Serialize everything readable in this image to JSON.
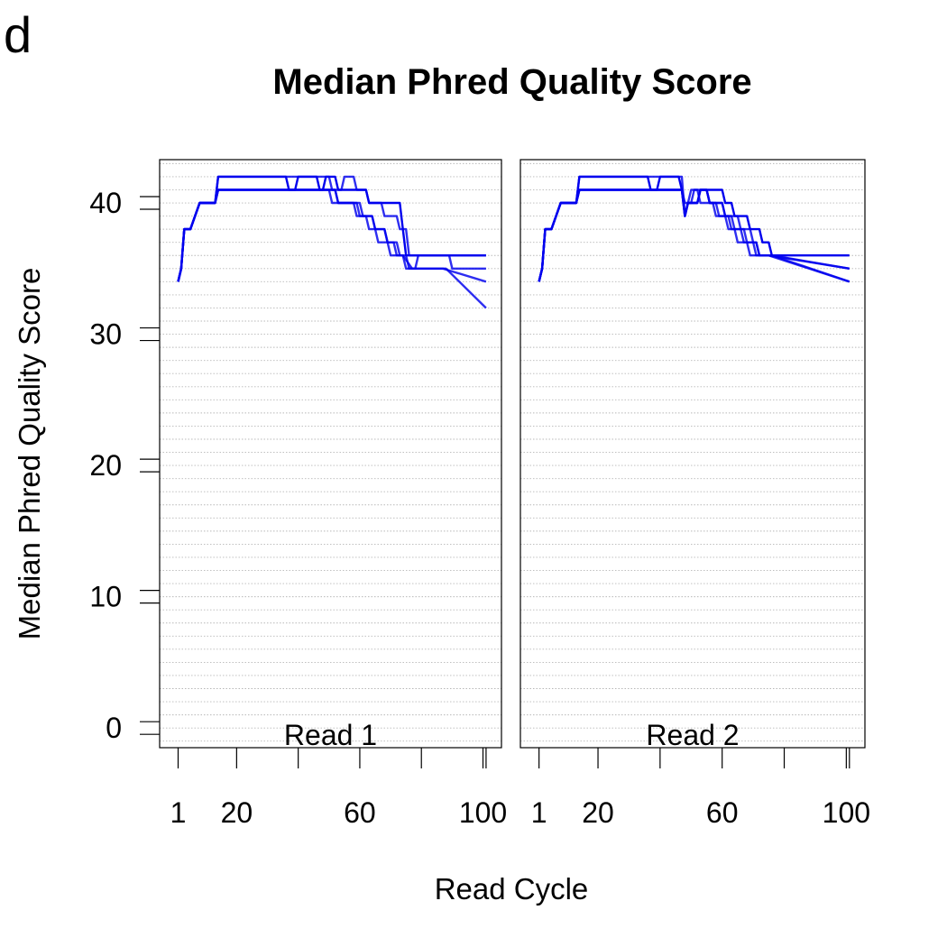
{
  "panel_letter": "d",
  "chart_data": {
    "type": "line",
    "title": "Median Phred Quality Score",
    "xlabel": "Read Cycle",
    "ylabel": "Median Phred Quality Score",
    "ylim": [
      -1.5,
      43.3
    ],
    "y_ticks": [
      0,
      10,
      20,
      30,
      40
    ],
    "grid": "horizontal dotted lines at every integer score",
    "series_color": "#0000ee",
    "panels": [
      {
        "label": "Read 1",
        "xlim": [
          -5,
          106
        ],
        "x_ticks": [
          1,
          20,
          40,
          60,
          80,
          100,
          101
        ],
        "x_tick_labels": [
          "1",
          "20",
          "",
          "60",
          "",
          "100",
          ""
        ],
        "series": [
          {
            "x": [
              1,
              2,
              3,
              5,
              8,
              10,
              13,
              14,
              15,
              36,
              37,
              39,
              40,
              41,
              46,
              47,
              48,
              49,
              52,
              53,
              62,
              63,
              73,
              74,
              75,
              76,
              81,
              82,
              101
            ],
            "y": [
              34,
              35,
              38,
              38,
              40,
              40,
              40,
              42,
              42,
              42,
              41,
              41,
              42,
              42,
              42,
              41,
              41,
              42,
              42,
              41,
              41,
              40,
              40,
              38,
              36,
              36,
              36,
              36,
              36
            ]
          },
          {
            "x": [
              1,
              2,
              3,
              5,
              8,
              10,
              13,
              14,
              15,
              50,
              51,
              54,
              55,
              60,
              61,
              64,
              65,
              68,
              69,
              72,
              73,
              74,
              77,
              78,
              87,
              88,
              101
            ],
            "y": [
              34,
              35,
              38,
              38,
              40,
              40,
              40,
              41,
              41,
              41,
              40,
              40,
              40,
              40,
              39,
              39,
              38,
              38,
              37,
              37,
              36,
              36,
              35,
              35,
              35,
              35,
              32
            ]
          },
          {
            "x": [
              1,
              2,
              3,
              5,
              8,
              10,
              13,
              14,
              15,
              52,
              53,
              58,
              59,
              62,
              63,
              65,
              66,
              69,
              70,
              74,
              75,
              78,
              79,
              89,
              90,
              101
            ],
            "y": [
              34,
              35,
              38,
              38,
              40,
              40,
              40,
              41,
              41,
              41,
              40,
              40,
              39,
              39,
              38,
              38,
              37,
              37,
              36,
              36,
              35,
              35,
              36,
              36,
              35,
              35
            ]
          },
          {
            "x": [
              1,
              2,
              3,
              5,
              8,
              10,
              13,
              14,
              15,
              50,
              51,
              54,
              55,
              58,
              59,
              62,
              63,
              67,
              68,
              72,
              73,
              75,
              76,
              86,
              87,
              101
            ],
            "y": [
              34,
              35,
              38,
              38,
              40,
              40,
              40,
              42,
              42,
              42,
              41,
              41,
              42,
              42,
              41,
              41,
              40,
              40,
              39,
              39,
              38,
              38,
              36,
              36,
              36,
              36
            ]
          },
          {
            "x": [
              1,
              2,
              3,
              5,
              8,
              10,
              13,
              14,
              15,
              52,
              53,
              59,
              60,
              64,
              65,
              68,
              69,
              71,
              72,
              75,
              76,
              86,
              87,
              101
            ],
            "y": [
              34,
              35,
              38,
              38,
              40,
              40,
              40,
              41,
              41,
              41,
              40,
              40,
              39,
              39,
              38,
              38,
              37,
              37,
              36,
              36,
              35,
              35,
              35,
              34
            ]
          }
        ]
      },
      {
        "label": "Read 2",
        "xlim": [
          -5,
          106
        ],
        "x_ticks": [
          1,
          20,
          40,
          60,
          80,
          100,
          101
        ],
        "x_tick_labels": [
          "1",
          "20",
          "",
          "60",
          "",
          "100",
          ""
        ],
        "series": [
          {
            "x": [
              1,
              2,
              3,
              5,
              8,
              10,
              13,
              14,
              15,
              36,
              37,
              39,
              40,
              41,
              46,
              47,
              48,
              49,
              52,
              53,
              60,
              61,
              63,
              64,
              68,
              69,
              72,
              73,
              75,
              76,
              101
            ],
            "y": [
              34,
              35,
              38,
              38,
              40,
              40,
              40,
              42,
              42,
              42,
              41,
              41,
              42,
              42,
              42,
              41,
              39,
              40,
              40,
              41,
              41,
              40,
              40,
              39,
              39,
              38,
              38,
              37,
              37,
              36,
              36
            ]
          },
          {
            "x": [
              1,
              2,
              3,
              5,
              8,
              10,
              13,
              14,
              15,
              47,
              48,
              49,
              52,
              53,
              55,
              56,
              60,
              61,
              65,
              66,
              69,
              70,
              71,
              72,
              75,
              76,
              101
            ],
            "y": [
              34,
              35,
              38,
              38,
              40,
              40,
              40,
              41,
              41,
              41,
              39,
              40,
              40,
              41,
              41,
              40,
              40,
              39,
              39,
              38,
              38,
              37,
              37,
              36,
              36,
              36,
              34
            ]
          },
          {
            "x": [
              1,
              2,
              3,
              5,
              8,
              10,
              13,
              14,
              15,
              47,
              48,
              49,
              52,
              53,
              55,
              56,
              60,
              61,
              63,
              64,
              67,
              68,
              71,
              72,
              75,
              76,
              101
            ],
            "y": [
              34,
              35,
              38,
              38,
              40,
              40,
              40,
              42,
              42,
              42,
              39,
              40,
              40,
              41,
              41,
              40,
              40,
              39,
              39,
              38,
              38,
              37,
              37,
              36,
              36,
              36,
              35
            ]
          },
          {
            "x": [
              1,
              2,
              3,
              5,
              8,
              10,
              13,
              14,
              15,
              47,
              48,
              49,
              50,
              55,
              56,
              58,
              59,
              62,
              63,
              66,
              67,
              70,
              71,
              74,
              75,
              101
            ],
            "y": [
              34,
              35,
              38,
              38,
              40,
              40,
              40,
              41,
              41,
              41,
              39,
              40,
              41,
              41,
              40,
              40,
              39,
              39,
              38,
              38,
              37,
              37,
              36,
              36,
              36,
              35
            ]
          },
          {
            "x": [
              1,
              2,
              3,
              5,
              8,
              10,
              13,
              14,
              15,
              47,
              48,
              50,
              51,
              52,
              53,
              57,
              58,
              61,
              62,
              64,
              65,
              68,
              69,
              74,
              75,
              101
            ],
            "y": [
              34,
              35,
              38,
              38,
              40,
              40,
              40,
              41,
              41,
              41,
              40,
              40,
              41,
              41,
              40,
              40,
              39,
              39,
              38,
              38,
              37,
              37,
              36,
              36,
              36,
              34
            ]
          }
        ]
      }
    ]
  }
}
